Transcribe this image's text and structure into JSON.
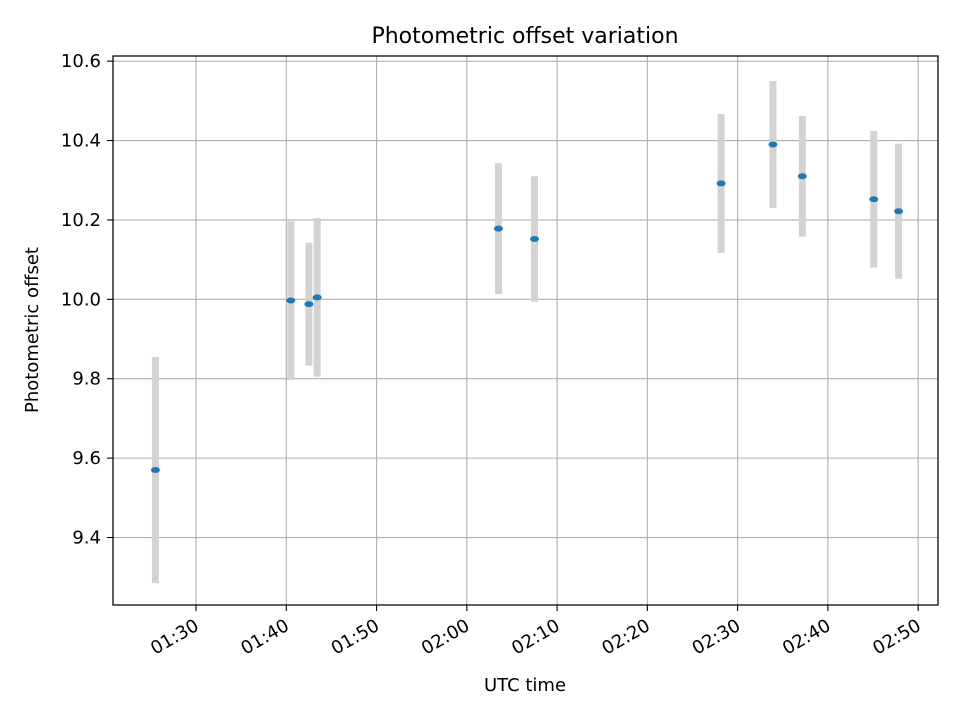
{
  "chart_data": {
    "type": "scatter",
    "title": "Photometric offset variation",
    "xlabel": "UTC time",
    "ylabel": "Photometric offset",
    "grid": true,
    "legend": "none",
    "x_unit": "UTC HH:MM",
    "xlim": [
      "01:20:48",
      "02:52:12"
    ],
    "ylim": [
      9.23,
      10.613
    ],
    "x_ticks": [
      "01:30",
      "01:40",
      "01:50",
      "02:00",
      "02:10",
      "02:20",
      "02:30",
      "02:40",
      "02:50"
    ],
    "y_ticks": [
      "9.4",
      "9.6",
      "9.8",
      "10.0",
      "10.2",
      "10.4",
      "10.6"
    ],
    "colors": {
      "marker": "#1f77b4",
      "errorbar": "#d3d3d3",
      "grid": "#b0b0b0"
    },
    "points": [
      {
        "time": "01:25:30",
        "y": 9.57,
        "yerr": 0.285
      },
      {
        "time": "01:40:30",
        "y": 9.997,
        "yerr": 0.2
      },
      {
        "time": "01:42:30",
        "y": 9.988,
        "yerr": 0.155
      },
      {
        "time": "01:43:25",
        "y": 10.005,
        "yerr": 0.2
      },
      {
        "time": "02:03:30",
        "y": 10.178,
        "yerr": 0.165
      },
      {
        "time": "02:07:30",
        "y": 10.152,
        "yerr": 0.158
      },
      {
        "time": "02:28:10",
        "y": 10.292,
        "yerr": 0.175
      },
      {
        "time": "02:33:55",
        "y": 10.39,
        "yerr": 0.16
      },
      {
        "time": "02:37:10",
        "y": 10.31,
        "yerr": 0.152
      },
      {
        "time": "02:45:05",
        "y": 10.252,
        "yerr": 0.172
      },
      {
        "time": "02:47:50",
        "y": 10.222,
        "yerr": 0.17
      }
    ]
  }
}
